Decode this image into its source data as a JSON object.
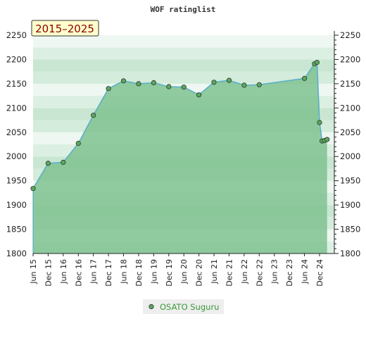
{
  "chart_data": {
    "type": "area",
    "title": "WOF ratinglist",
    "badge": "2015–2025",
    "xlabel": "",
    "ylabel": "",
    "ylim": [
      1800,
      2250
    ],
    "y_ticks": [
      1800,
      1850,
      1900,
      1950,
      2000,
      2050,
      2100,
      2150,
      2200,
      2250
    ],
    "x_ticks": [
      "Jun 15",
      "Dec 15",
      "Jun 16",
      "Dec 16",
      "Jun 17",
      "Dec 17",
      "Jun 18",
      "Dec 18",
      "Jun 19",
      "Dec 19",
      "Jun 20",
      "Dec 20",
      "Jun 21",
      "Dec 21",
      "Jun 22",
      "Dec 22",
      "Jun 23",
      "Dec 23",
      "Jun 24",
      "Dec 24"
    ],
    "grid": "horizontal bands",
    "legend_position": "bottom-center",
    "series": [
      {
        "name": "OSATO Suguru",
        "color": "#5ab0c8",
        "marker_color": "#5aa85a",
        "points": [
          {
            "x": "Jun 15",
            "y": 1934
          },
          {
            "x": "Dec 15",
            "y": 1986
          },
          {
            "x": "Jun 16",
            "y": 1988
          },
          {
            "x": "Dec 16",
            "y": 2027
          },
          {
            "x": "Jun 17",
            "y": 2085
          },
          {
            "x": "Dec 17",
            "y": 2140
          },
          {
            "x": "Jun 18",
            "y": 2156
          },
          {
            "x": "Dec 18",
            "y": 2150
          },
          {
            "x": "Jun 19",
            "y": 2152
          },
          {
            "x": "Dec 19",
            "y": 2144
          },
          {
            "x": "Jun 20",
            "y": 2143
          },
          {
            "x": "Dec 20",
            "y": 2127
          },
          {
            "x": "Jun 21",
            "y": 2153
          },
          {
            "x": "Dec 21",
            "y": 2157
          },
          {
            "x": "Jun 22",
            "y": 2147
          },
          {
            "x": "Dec 22",
            "y": 2148
          },
          {
            "x": "Jun 24",
            "y": 2161
          },
          {
            "x": "Oct 24",
            "y": 2191
          },
          {
            "x": "Nov 24",
            "y": 2194
          },
          {
            "x": "Dec 24",
            "y": 2070
          },
          {
            "x": "Jan 25",
            "y": 2032
          },
          {
            "x": "Feb 25",
            "y": 2033
          },
          {
            "x": "Mar 25",
            "y": 2035
          }
        ]
      }
    ]
  }
}
